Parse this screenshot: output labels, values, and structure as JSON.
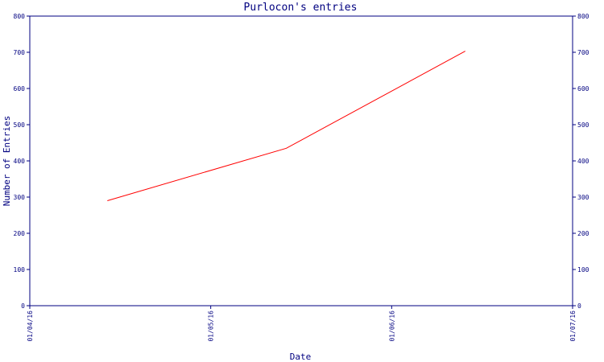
{
  "chart_data": {
    "type": "line",
    "title": "Purlocon's entries",
    "xlabel": "Date",
    "ylabel": "Number of Entries",
    "x_ticks": [
      "01/04/16",
      "01/05/16",
      "01/06/16",
      "01/07/16"
    ],
    "y_ticks": [
      0,
      100,
      200,
      300,
      400,
      500,
      600,
      700,
      800
    ],
    "ylim": [
      0,
      800
    ],
    "xlim": [
      "2016-04-01",
      "2016-07-01"
    ],
    "grid": false,
    "series": [
      {
        "x": [
          "2016-04-14",
          "2016-05-14",
          "2016-06-13"
        ],
        "values": [
          290,
          435,
          703
        ]
      }
    ],
    "colors": {
      "axis": "#000080",
      "text": "#000080",
      "line": "#ff0000"
    }
  }
}
